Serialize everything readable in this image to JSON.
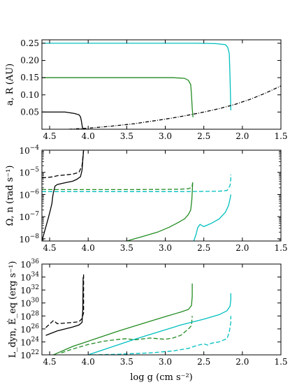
{
  "chart_data": [
    {
      "type": "line",
      "ylabel": "a, R (AU)",
      "xlim": [
        4.6,
        1.5
      ],
      "ylim": [
        0.0,
        0.26
      ],
      "yscale": "linear",
      "xticks": [
        "4.5",
        "4.0",
        "3.5",
        "3.0",
        "2.5",
        "2.0",
        "1.5"
      ],
      "yticks": [
        "0.05",
        "0.10",
        "0.15",
        "0.20",
        "0.25"
      ],
      "series": [
        {
          "color": "#000000",
          "style": "solid",
          "x": [
            4.6,
            4.45,
            4.3,
            4.18,
            4.12,
            4.1,
            4.09,
            4.08,
            4.07
          ],
          "y": [
            0.05,
            0.05,
            0.05,
            0.046,
            0.042,
            0.036,
            0.026,
            0.012,
            0.0
          ]
        },
        {
          "color": "#228b22",
          "style": "solid",
          "x": [
            4.6,
            3.2,
            2.9,
            2.75,
            2.7,
            2.67,
            2.66,
            2.65,
            2.64
          ],
          "y": [
            0.15,
            0.15,
            0.15,
            0.148,
            0.142,
            0.13,
            0.1,
            0.06,
            0.035
          ]
        },
        {
          "color": "#00bfbf",
          "style": "solid",
          "x": [
            4.6,
            2.6,
            2.35,
            2.22,
            2.19,
            2.17,
            2.16,
            2.15
          ],
          "y": [
            0.25,
            0.25,
            0.249,
            0.246,
            0.238,
            0.22,
            0.15,
            0.055
          ]
        },
        {
          "color": "#000000",
          "style": "dashdot",
          "x": [
            4.25,
            4.0,
            3.7,
            3.4,
            3.1,
            2.9,
            2.7,
            2.5,
            2.3,
            2.1,
            1.9,
            1.7,
            1.5
          ],
          "y": [
            0.0,
            0.003,
            0.009,
            0.016,
            0.026,
            0.033,
            0.041,
            0.05,
            0.06,
            0.072,
            0.087,
            0.105,
            0.126
          ]
        }
      ]
    },
    {
      "type": "line",
      "ylabel": "Ω, n (rad s⁻¹)",
      "xlim": [
        4.6,
        1.5
      ],
      "ylim": [
        -8.1,
        -4
      ],
      "yscale": "log",
      "xticks": [
        "4.5",
        "4.0",
        "3.5",
        "3.0",
        "2.5",
        "2.0",
        "1.5"
      ],
      "yticks": [
        {
          "base": "10",
          "exp": "−8",
          "value": -8
        },
        {
          "base": "10",
          "exp": "−7",
          "value": -7
        },
        {
          "base": "10",
          "exp": "−6",
          "value": -6
        },
        {
          "base": "10",
          "exp": "−5",
          "value": -5
        },
        {
          "base": "10",
          "exp": "−4",
          "value": -4
        }
      ],
      "series": [
        {
          "color": "#000000",
          "style": "solid",
          "x": [
            4.6,
            4.56,
            4.52,
            4.49,
            4.47,
            4.46,
            4.45,
            4.44,
            4.43,
            4.4,
            4.3,
            4.2,
            4.15,
            4.1,
            4.08,
            4.06
          ],
          "y": [
            -8.1,
            -7.6,
            -7.1,
            -6.7,
            -6.4,
            -6.1,
            -5.9,
            -5.75,
            -5.62,
            -5.55,
            -5.47,
            -5.4,
            -5.32,
            -5.2,
            -4.9,
            -4.0
          ]
        },
        {
          "color": "#000000",
          "style": "dashed",
          "x": [
            4.6,
            4.5,
            4.45,
            4.4,
            4.3,
            4.2,
            4.12,
            4.08,
            4.06
          ],
          "y": [
            -5.25,
            -5.22,
            -5.2,
            -5.15,
            -5.12,
            -5.08,
            -5.0,
            -4.7,
            -4.0
          ]
        },
        {
          "color": "#228b22",
          "style": "solid",
          "x": [
            3.5,
            3.3,
            3.1,
            2.95,
            2.85,
            2.75,
            2.7,
            2.67,
            2.655,
            2.645
          ],
          "y": [
            -8.1,
            -7.9,
            -7.7,
            -7.48,
            -7.3,
            -7.1,
            -6.9,
            -6.7,
            -6.2,
            -5.5
          ]
        },
        {
          "color": "#228b22",
          "style": "dashed",
          "x": [
            4.6,
            3.5,
            3.0,
            2.8,
            2.7,
            2.66,
            2.65,
            2.645
          ],
          "y": [
            -5.78,
            -5.78,
            -5.77,
            -5.76,
            -5.74,
            -5.68,
            -5.6,
            -5.45
          ]
        },
        {
          "color": "#00bfbf",
          "style": "solid",
          "x": [
            2.63,
            2.6,
            2.58,
            2.55,
            2.5,
            2.4,
            2.3,
            2.22,
            2.18,
            2.16,
            2.15
          ],
          "y": [
            -8.1,
            -7.8,
            -7.5,
            -7.35,
            -7.45,
            -7.3,
            -7.1,
            -6.8,
            -6.5,
            -6.2,
            -6.0
          ]
        },
        {
          "color": "#00bfbf",
          "style": "dashed",
          "x": [
            4.6,
            3.5,
            2.8,
            2.5,
            2.3,
            2.2,
            2.16,
            2.15,
            2.15
          ],
          "y": [
            -5.87,
            -5.87,
            -5.87,
            -5.86,
            -5.85,
            -5.82,
            -5.6,
            -5.3,
            -5.1
          ]
        }
      ]
    },
    {
      "type": "line",
      "ylabel": "L_dyn, Ė_eq (erg s⁻¹)",
      "xlabel": "log g (cm s⁻²)",
      "xlim": [
        4.6,
        1.5
      ],
      "ylim": [
        22,
        36
      ],
      "yscale": "log",
      "xticks": [
        "4.5",
        "4.0",
        "3.5",
        "3.0",
        "2.5",
        "2.0",
        "1.5"
      ],
      "yticks": [
        {
          "base": "10",
          "exp": "22",
          "value": 22
        },
        {
          "base": "10",
          "exp": "24",
          "value": 24
        },
        {
          "base": "10",
          "exp": "26",
          "value": 26
        },
        {
          "base": "10",
          "exp": "28",
          "value": 28
        },
        {
          "base": "10",
          "exp": "30",
          "value": 30
        },
        {
          "base": "10",
          "exp": "32",
          "value": 32
        },
        {
          "base": "10",
          "exp": "34",
          "value": 34
        },
        {
          "base": "10",
          "exp": "36",
          "value": 36
        }
      ],
      "series": [
        {
          "color": "#000000",
          "style": "solid",
          "x": [
            4.55,
            4.4,
            4.3,
            4.2,
            4.12,
            4.08,
            4.07,
            4.065
          ],
          "y": [
            25.0,
            25.7,
            26.0,
            26.3,
            26.6,
            27.0,
            29.0,
            34.0
          ]
        },
        {
          "color": "#000000",
          "style": "dashed",
          "x": [
            4.55,
            4.45,
            4.4,
            4.3,
            4.2,
            4.12,
            4.08,
            4.06,
            4.06
          ],
          "y": [
            26.2,
            27.3,
            26.8,
            26.9,
            27.0,
            27.1,
            27.6,
            28.5,
            34.5
          ]
        },
        {
          "color": "#228b22",
          "style": "solid",
          "x": [
            4.45,
            4.2,
            3.9,
            3.6,
            3.3,
            3.0,
            2.8,
            2.7,
            2.66,
            2.65,
            2.65
          ],
          "y": [
            22.0,
            23.3,
            24.5,
            25.7,
            26.8,
            27.9,
            28.6,
            29.0,
            29.6,
            31.0,
            33.0
          ]
        },
        {
          "color": "#228b22",
          "style": "dashed",
          "x": [
            4.35,
            4.2,
            4.0,
            3.8,
            3.6,
            3.5,
            3.4,
            3.2,
            3.0,
            2.9,
            2.8,
            2.7,
            2.66,
            2.65
          ],
          "y": [
            22.3,
            22.9,
            23.6,
            24.1,
            24.4,
            24.5,
            24.3,
            24.6,
            24.4,
            24.6,
            25.0,
            26.0,
            26.5,
            28.0
          ]
        },
        {
          "color": "#00bfbf",
          "style": "solid",
          "x": [
            4.0,
            3.7,
            3.4,
            3.1,
            2.8,
            2.5,
            2.3,
            2.2,
            2.16,
            2.15,
            2.15
          ],
          "y": [
            22.0,
            23.2,
            24.4,
            25.5,
            26.6,
            27.5,
            28.2,
            28.8,
            29.5,
            30.5,
            31.5
          ]
        },
        {
          "color": "#00bfbf",
          "style": "dashed",
          "x": [
            3.95,
            3.6,
            3.2,
            2.9,
            2.7,
            2.6,
            2.5,
            2.45,
            2.4,
            2.3,
            2.2,
            2.17,
            2.15,
            2.15
          ],
          "y": [
            22.0,
            22.1,
            22.3,
            22.6,
            23.0,
            23.4,
            23.7,
            23.5,
            23.8,
            24.0,
            24.5,
            25.5,
            27.0,
            28.0
          ]
        }
      ]
    }
  ]
}
